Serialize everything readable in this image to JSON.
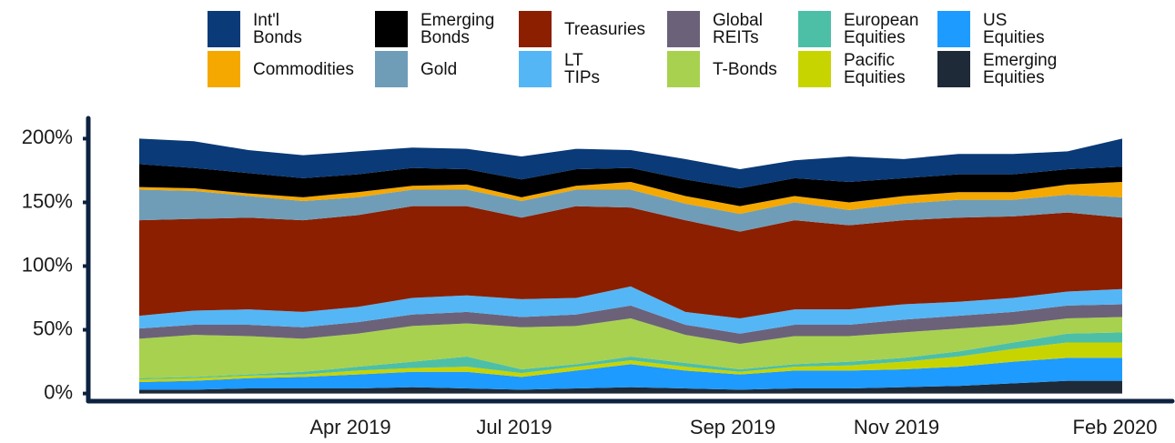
{
  "chart_data": {
    "type": "stacked_area",
    "categories": [
      null,
      null,
      null,
      null,
      "Apr 2019",
      null,
      null,
      "Jul 2019",
      null,
      null,
      null,
      "Sep 2019",
      null,
      null,
      "Nov 2019",
      null,
      null,
      null,
      "Feb 2020"
    ],
    "ylim": [
      -6,
      216
    ],
    "yticks": [
      {
        "value": 0,
        "label": "0%"
      },
      {
        "value": 50,
        "label": "50%"
      },
      {
        "value": 100,
        "label": "100%"
      },
      {
        "value": 150,
        "label": "150%"
      },
      {
        "value": 200,
        "label": "200%"
      }
    ],
    "series": [
      {
        "name": "Emerging Equities",
        "color": "#1f2a38",
        "values": [
          3,
          3,
          4,
          4,
          4,
          5,
          4,
          3,
          4,
          5,
          4,
          3,
          4,
          4,
          5,
          6,
          8,
          10,
          10
        ]
      },
      {
        "name": "US Equities",
        "color": "#1e9bff",
        "values": [
          6,
          7,
          8,
          9,
          11,
          12,
          13,
          10,
          14,
          18,
          14,
          12,
          14,
          14,
          14,
          15,
          17,
          18,
          18
        ]
      },
      {
        "name": "Pacific Equities",
        "color": "#c8d400",
        "values": [
          2,
          2,
          2,
          2,
          3,
          3,
          4,
          3,
          3,
          3,
          3,
          2,
          3,
          4,
          6,
          8,
          10,
          12,
          12
        ]
      },
      {
        "name": "European Equities",
        "color": "#4dbfa7",
        "values": [
          1,
          1,
          1,
          2,
          3,
          5,
          8,
          3,
          2,
          3,
          3,
          2,
          2,
          3,
          3,
          4,
          5,
          7,
          8
        ]
      },
      {
        "name": "T-Bonds",
        "color": "#a8d14f",
        "values": [
          31,
          33,
          30,
          26,
          26,
          28,
          26,
          33,
          30,
          30,
          22,
          20,
          22,
          20,
          20,
          18,
          14,
          12,
          12
        ]
      },
      {
        "name": "Global REITs",
        "color": "#6b6279",
        "values": [
          8,
          8,
          9,
          9,
          9,
          9,
          9,
          8,
          9,
          10,
          8,
          8,
          9,
          9,
          10,
          10,
          10,
          10,
          10
        ]
      },
      {
        "name": "LT TIPs",
        "color": "#55b6f5",
        "values": [
          10,
          11,
          12,
          12,
          12,
          13,
          13,
          14,
          13,
          15,
          10,
          12,
          12,
          12,
          12,
          11,
          11,
          11,
          12
        ]
      },
      {
        "name": "Treasuries",
        "color": "#8b1f00",
        "values": [
          75,
          72,
          72,
          72,
          72,
          72,
          70,
          64,
          72,
          62,
          72,
          68,
          70,
          66,
          66,
          66,
          64,
          62,
          56
        ]
      },
      {
        "name": "Gold",
        "color": "#6f9db8",
        "values": [
          24,
          22,
          17,
          15,
          14,
          13,
          13,
          13,
          13,
          14,
          13,
          14,
          14,
          12,
          13,
          14,
          13,
          14,
          16
        ]
      },
      {
        "name": "Commodities",
        "color": "#f5a800",
        "values": [
          2,
          2,
          2,
          3,
          4,
          3,
          4,
          3,
          3,
          6,
          6,
          6,
          5,
          6,
          6,
          6,
          6,
          8,
          12
        ]
      },
      {
        "name": "Emerging Bonds",
        "color": "#000000",
        "values": [
          18,
          16,
          16,
          15,
          14,
          14,
          12,
          14,
          13,
          11,
          13,
          14,
          14,
          16,
          14,
          14,
          14,
          12,
          12
        ]
      },
      {
        "name": "Int'l Bonds",
        "color": "#0a3a78",
        "values": [
          20,
          21,
          18,
          18,
          18,
          16,
          16,
          18,
          16,
          14,
          16,
          15,
          14,
          20,
          15,
          16,
          16,
          14,
          22
        ]
      }
    ]
  }
}
